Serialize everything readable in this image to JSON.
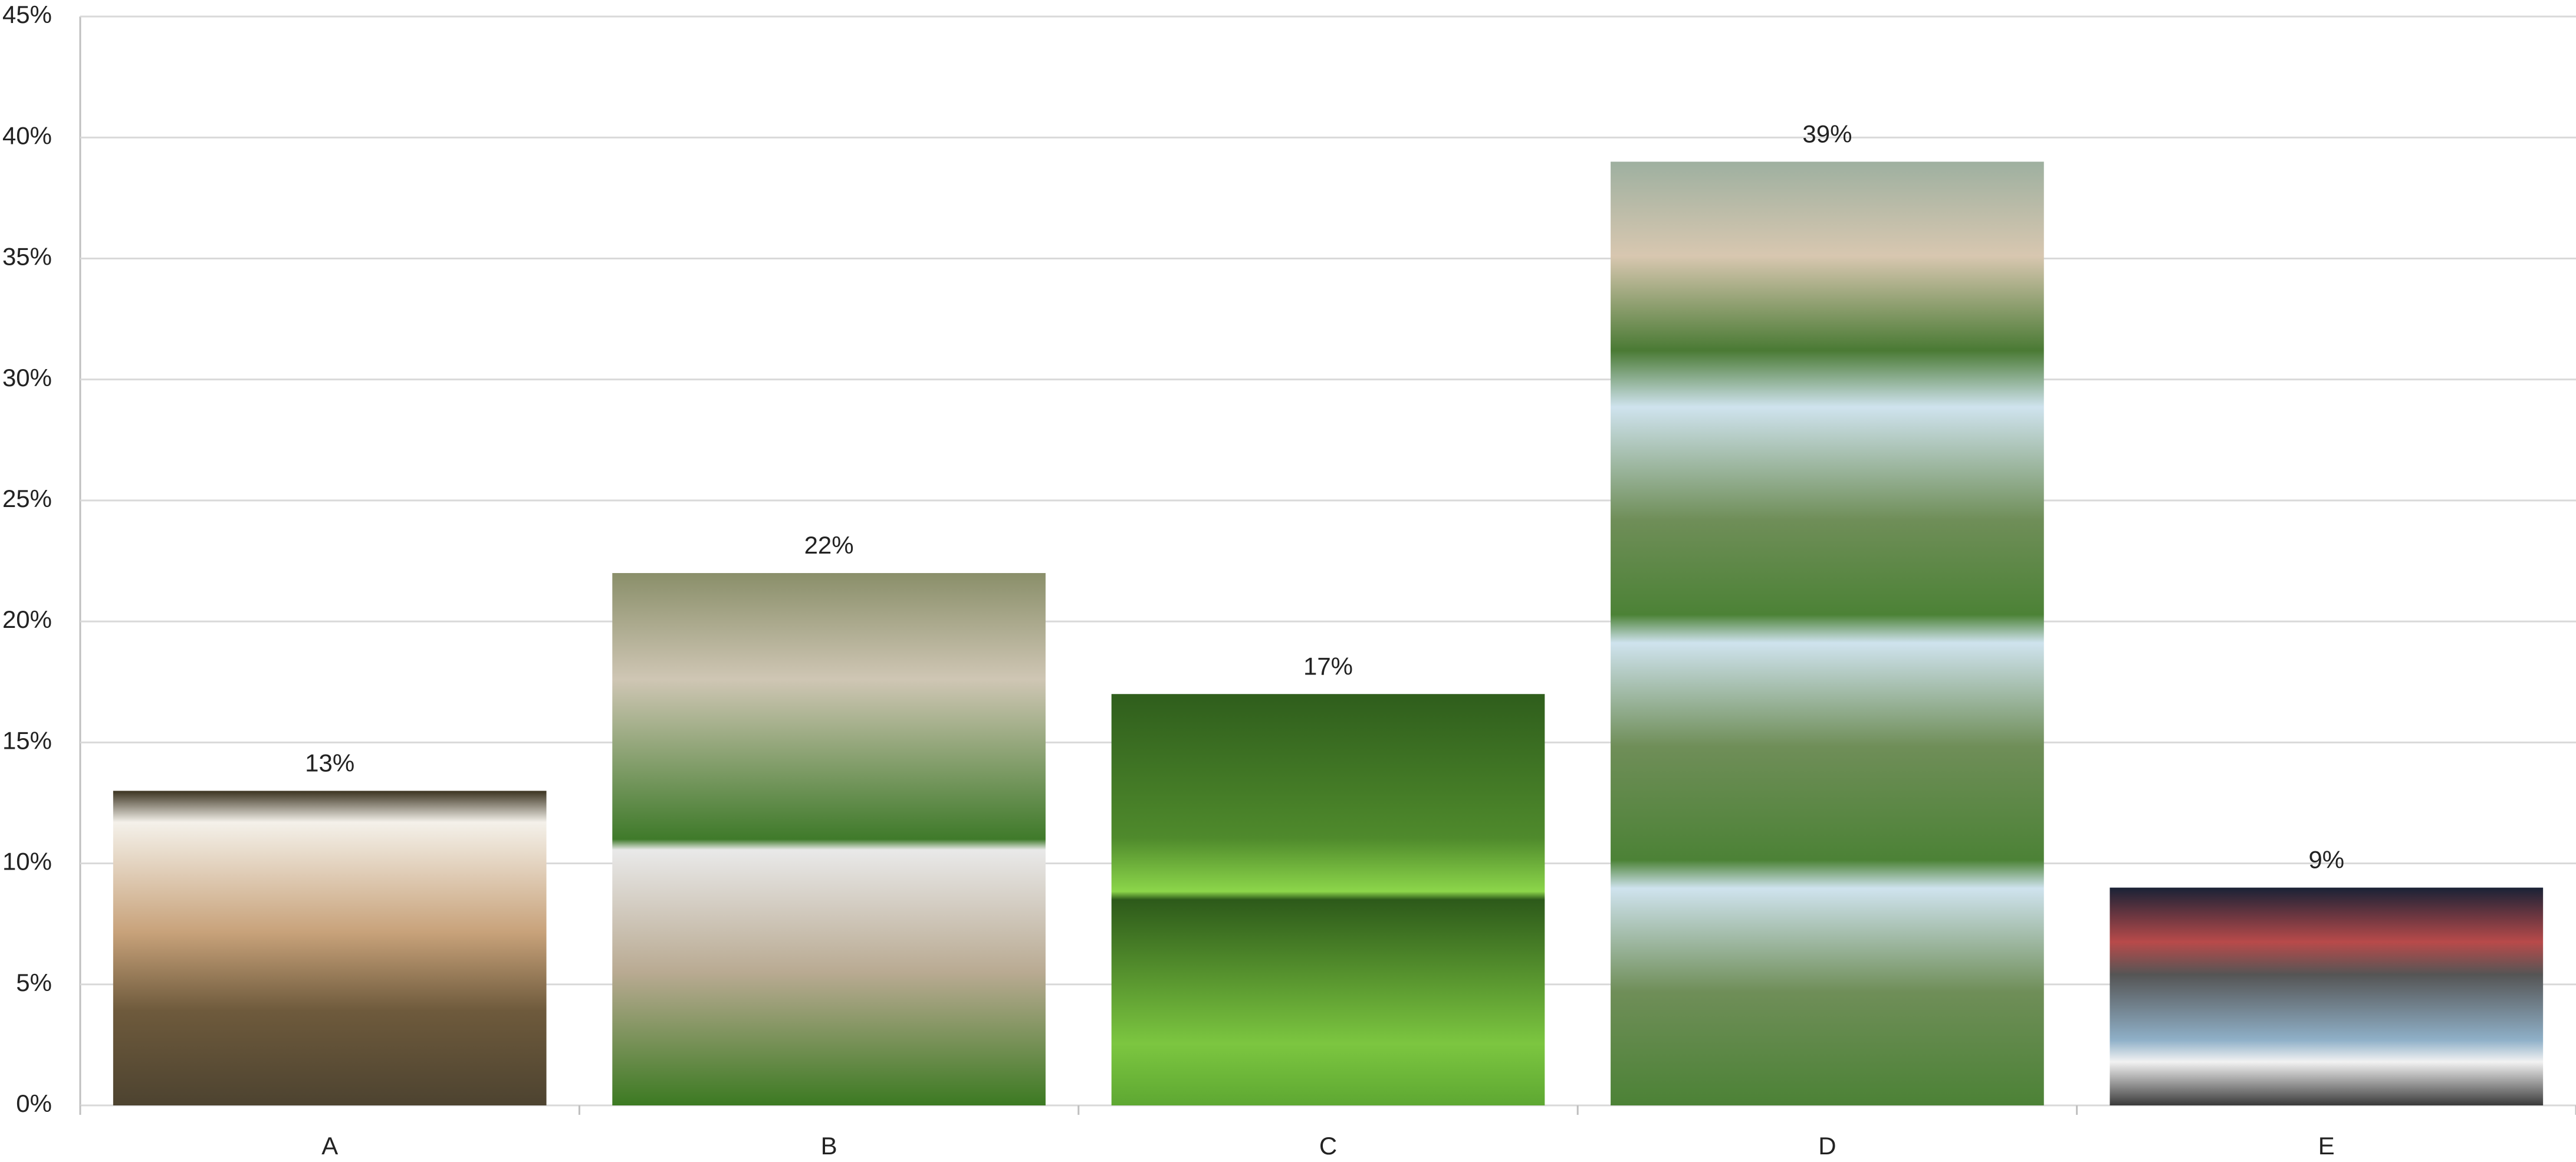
{
  "chart_data": {
    "type": "bar",
    "categories": [
      "A",
      "B",
      "C",
      "D",
      "E"
    ],
    "values": [
      13,
      22,
      17,
      39,
      9
    ],
    "value_labels": [
      "13%",
      "22%",
      "17%",
      "39%",
      "9%"
    ],
    "ylim": [
      0,
      45
    ],
    "yticks": [
      {
        "value": 0,
        "label": "0%"
      },
      {
        "value": 5,
        "label": "5%"
      },
      {
        "value": 10,
        "label": "10%"
      },
      {
        "value": 15,
        "label": "15%"
      },
      {
        "value": 20,
        "label": "20%"
      },
      {
        "value": 25,
        "label": "25%"
      },
      {
        "value": 30,
        "label": "30%"
      },
      {
        "value": 35,
        "label": "35%"
      },
      {
        "value": 40,
        "label": "40%"
      },
      {
        "value": 45,
        "label": "45%"
      }
    ],
    "grid": true
  }
}
